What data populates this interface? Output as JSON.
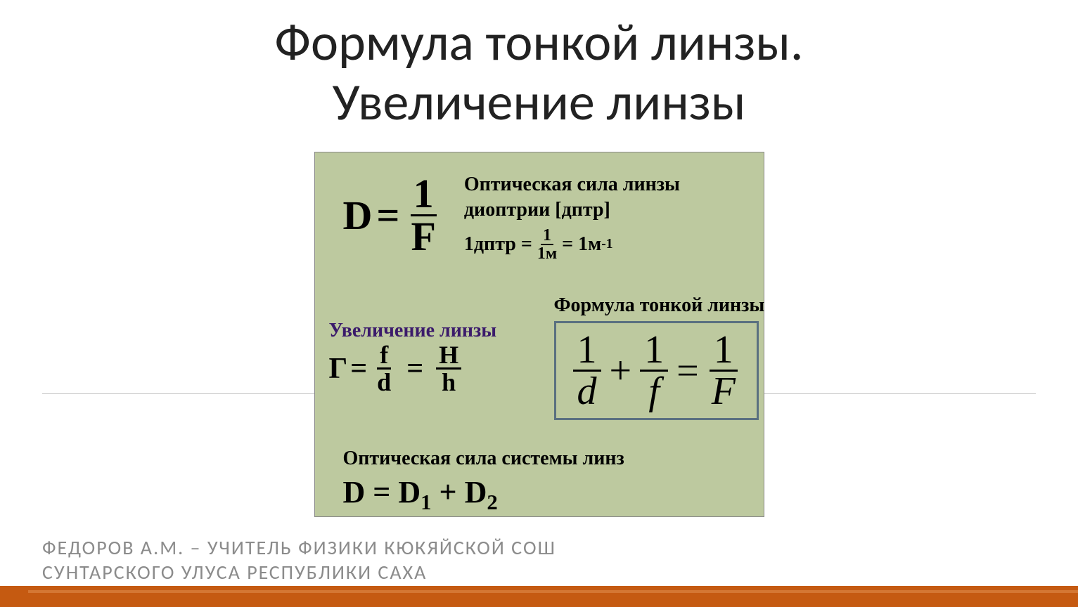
{
  "title_line1": "Формула тонкой линзы.",
  "title_line2": "Увеличение линзы",
  "optical_power": {
    "header": "Оптическая сила линзы",
    "formula_left": "D",
    "eq": "=",
    "num": "1",
    "den": "F",
    "unit_label": "диоптрии  [дптр]",
    "unit_eq_left": "1дптр =",
    "unit_frac_num": "1",
    "unit_frac_den": "1м",
    "unit_eq_right": "= 1м",
    "unit_sup": "-1"
  },
  "magnification": {
    "header": "Увеличение линзы",
    "gamma": "Г",
    "eq1": "=",
    "num1": "f",
    "den1": "d",
    "eq2": "=",
    "num2": "H",
    "den2": "h"
  },
  "thin_lens": {
    "header": "Формула тонкой линзы",
    "n1": "1",
    "d1": "d",
    "plus": "+",
    "n2": "1",
    "d2": "f",
    "eq": "=",
    "n3": "1",
    "d3": "F"
  },
  "system": {
    "header": "Оптическая сила системы линз",
    "eq": "D = D",
    "sub1": "1",
    "plus": " + D",
    "sub2": "2"
  },
  "author_line1": "ФЕДОРОВ А.М. – УЧИТЕЛЬ ФИЗИКИ КЮКЯЙСКОЙ СОШ",
  "author_line2": "СУНТАРСКОГО УЛУСА РЕСПУБЛИКИ САХА",
  "colors": {
    "title": "#222222",
    "formula_bg": "#bdc99f",
    "purple": "#3b1b6b",
    "box_border": "#5a7080",
    "author": "#8b8b8b",
    "divider": "#c4c4c4",
    "bottom_bar": "#c55a11"
  }
}
